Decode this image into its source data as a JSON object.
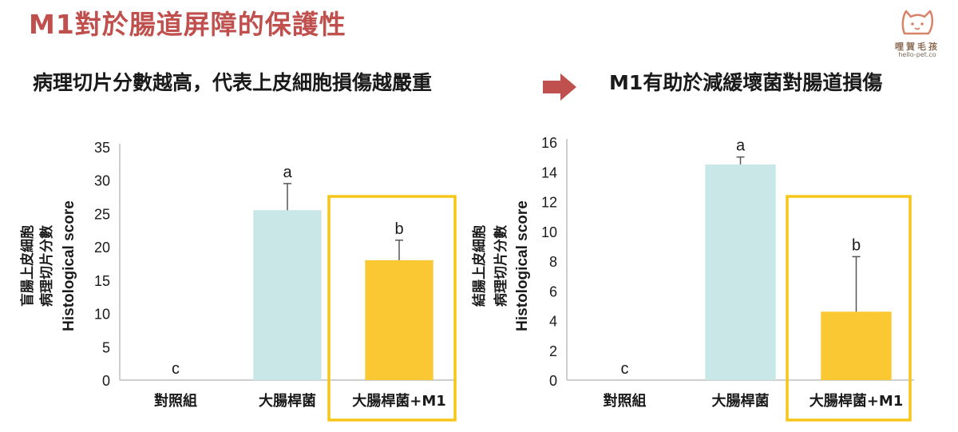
{
  "header": {
    "title": "M1對於腸道屏障的保護性",
    "subtitle_left": "病理切片分數越高，代表上皮細胞損傷越嚴重",
    "subtitle_right": "M1有助於減緩壞菌對腸道損傷"
  },
  "logo": {
    "name": "哩賀毛孩",
    "url": "hello-pet.co",
    "icon": "cat-head-icon"
  },
  "arrow_icon": "right-arrow-icon",
  "colors": {
    "title": "#c0504d",
    "arrow": "#c0504d",
    "light_bar": "#c9e7e7",
    "yellow_bar": "#fac832",
    "highlight_box": "#f5c518"
  },
  "chart_data": [
    {
      "type": "bar",
      "categories": [
        "對照組",
        "大腸桿菌",
        "大腸桿菌+M1"
      ],
      "values": [
        0,
        25.5,
        18
      ],
      "error": [
        0,
        4,
        3
      ],
      "significance": [
        "c",
        "a",
        "b"
      ],
      "ylabel_lines": [
        "盲腸上皮細胞",
        "病理切片分數",
        "Histological score"
      ],
      "ylim": [
        0,
        35
      ],
      "yticks": [
        0,
        5,
        10,
        15,
        20,
        25,
        30,
        35
      ],
      "bar_colors": [
        "#c9e7e7",
        "#c9e7e7",
        "#fac832"
      ],
      "highlight": "大腸桿菌+M1"
    },
    {
      "type": "bar",
      "categories": [
        "對照組",
        "大腸桿菌",
        "大腸桿菌+M1"
      ],
      "values": [
        0,
        14.5,
        4.6
      ],
      "error": [
        0,
        0.5,
        3.7
      ],
      "significance": [
        "c",
        "a",
        "b"
      ],
      "ylabel_lines": [
        "結腸上皮細胞",
        "病理切片分數",
        "Histological score"
      ],
      "ylim": [
        0,
        16
      ],
      "yticks": [
        0,
        2,
        4,
        6,
        8,
        10,
        12,
        14,
        16
      ],
      "bar_colors": [
        "#c9e7e7",
        "#c9e7e7",
        "#fac832"
      ],
      "highlight": "大腸桿菌+M1"
    }
  ]
}
